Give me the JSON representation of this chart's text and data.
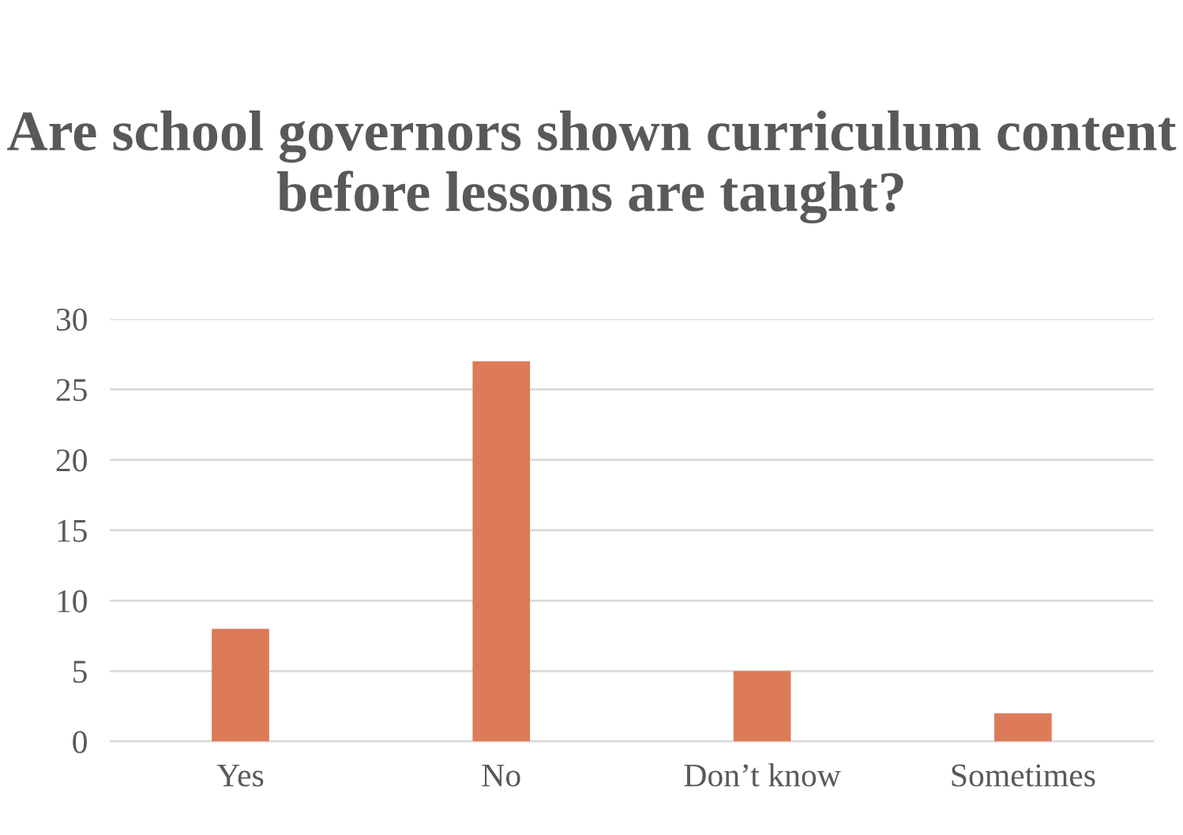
{
  "chart_data": {
    "type": "bar",
    "title": "Are school governors shown curriculum content before lessons are taught?",
    "categories": [
      "Yes",
      "No",
      "Don’t know",
      "Sometimes"
    ],
    "values": [
      8,
      27,
      5,
      2
    ],
    "color": "#dd7a58",
    "ylim": [
      0,
      30
    ],
    "yticks": [
      0,
      5,
      10,
      15,
      20,
      25,
      30
    ],
    "grid": "y",
    "legend": false
  }
}
